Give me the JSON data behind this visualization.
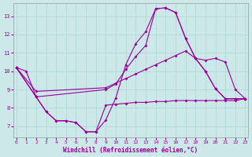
{
  "xlabel": "Windchill (Refroidissement éolien,°C)",
  "bg_color": "#cce8e8",
  "line_color": "#990099",
  "grid_color": "#aad4d4",
  "xlim": [
    -0.3,
    23.3
  ],
  "ylim": [
    6.4,
    13.7
  ],
  "xticks": [
    0,
    1,
    2,
    3,
    4,
    5,
    6,
    7,
    8,
    9,
    10,
    11,
    12,
    13,
    14,
    15,
    16,
    17,
    18,
    19,
    20,
    21,
    22,
    23
  ],
  "yticks": [
    7,
    8,
    9,
    10,
    11,
    12,
    13
  ],
  "series": [
    {
      "x": [
        0,
        1,
        2,
        3,
        4,
        5,
        6,
        7,
        8,
        9,
        10,
        11,
        12,
        13,
        14,
        15,
        16,
        17,
        18,
        19,
        20,
        21,
        22,
        23
      ],
      "y": [
        10.2,
        10.0,
        8.6,
        7.8,
        7.3,
        7.3,
        7.2,
        6.7,
        6.7,
        7.35,
        8.55,
        10.35,
        11.5,
        12.15,
        13.4,
        13.45,
        13.2,
        11.8,
        10.7,
        10.0,
        9.05,
        8.5,
        8.5,
        8.5
      ]
    },
    {
      "x": [
        0,
        2,
        9,
        10,
        11,
        12,
        13,
        14,
        15,
        16,
        17,
        18,
        19,
        20,
        21,
        22,
        23
      ],
      "y": [
        10.2,
        8.6,
        9.0,
        9.3,
        10.1,
        10.8,
        11.4,
        13.4,
        13.45,
        13.2,
        11.8,
        10.7,
        10.0,
        9.05,
        8.5,
        8.5,
        8.5
      ]
    },
    {
      "x": [
        0,
        2,
        9,
        10,
        11,
        12,
        13,
        14,
        15,
        16,
        17,
        18,
        19,
        20,
        21,
        22,
        23
      ],
      "y": [
        10.2,
        8.9,
        9.1,
        9.35,
        9.6,
        9.85,
        10.1,
        10.35,
        10.6,
        10.85,
        11.1,
        10.7,
        10.6,
        10.7,
        10.5,
        9.0,
        8.5
      ]
    },
    {
      "x": [
        0,
        2,
        3,
        4,
        5,
        6,
        7,
        8,
        9,
        10,
        11,
        12,
        13,
        14,
        15,
        16,
        17,
        18,
        19,
        20,
        21,
        22,
        23
      ],
      "y": [
        10.2,
        8.6,
        7.8,
        7.3,
        7.3,
        7.2,
        6.7,
        6.7,
        8.15,
        8.2,
        8.25,
        8.3,
        8.3,
        8.35,
        8.35,
        8.4,
        8.4,
        8.4,
        8.4,
        8.4,
        8.4,
        8.4,
        8.5
      ]
    }
  ]
}
